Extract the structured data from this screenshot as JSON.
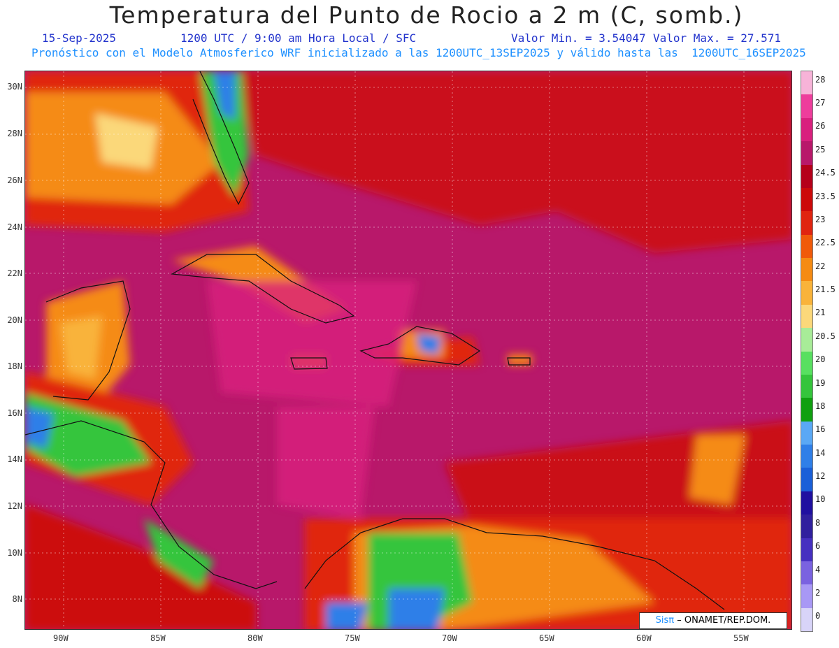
{
  "title": "Temperatura del Punto de Rocio a 2 m (C, somb.)",
  "header": {
    "date": "15-Sep-2025",
    "time": "1200 UTC / 9:00 am Hora Local / SFC",
    "vmin": "Valor Min. = 3.54047",
    "vmax": "Valor Max. = 27.571",
    "forecast": "Pronóstico con el Modelo Atmosferico WRF inicializado a las 1200UTC_13SEP2025 y válido hasta las  1200UTC_16SEP2025"
  },
  "lat_labels": [
    "30N",
    "28N",
    "26N",
    "24N",
    "22N",
    "20N",
    "18N",
    "16N",
    "14N",
    "12N",
    "10N",
    "8N"
  ],
  "lon_labels": [
    "90W",
    "85W",
    "80W",
    "75W",
    "70W",
    "65W",
    "60W",
    "55W"
  ],
  "colorbar": {
    "labels": [
      "28",
      "27",
      "26",
      "25",
      "24.5",
      "23.5",
      "23",
      "22.5",
      "22",
      "21.5",
      "21",
      "20.5",
      "20",
      "19",
      "18",
      "16",
      "14",
      "12",
      "10",
      "8",
      "6",
      "4",
      "2",
      "0"
    ],
    "colors": [
      "#f7b3d8",
      "#ee3d9c",
      "#d9207e",
      "#b8186a",
      "#b5001a",
      "#cc0a0a",
      "#e02510",
      "#f05a0a",
      "#f58b12",
      "#f9b33a",
      "#fbd87a",
      "#a8ec98",
      "#58e060",
      "#35c53c",
      "#10a010",
      "#5aa8f5",
      "#2f7fe8",
      "#1a5fd8",
      "#2010a0",
      "#30209e",
      "#4630c0",
      "#7a62e0",
      "#a898f5",
      "#d8d4f8"
    ]
  },
  "credit": {
    "brand": "Sisπ",
    "text": "– ONAMET/REP.DOM."
  },
  "colors": {
    "land_red": "#cc1010",
    "sea_magenta": "#b8186a",
    "orange": "#f58b12",
    "green": "#35c53c",
    "blue": "#2f7fe8"
  }
}
